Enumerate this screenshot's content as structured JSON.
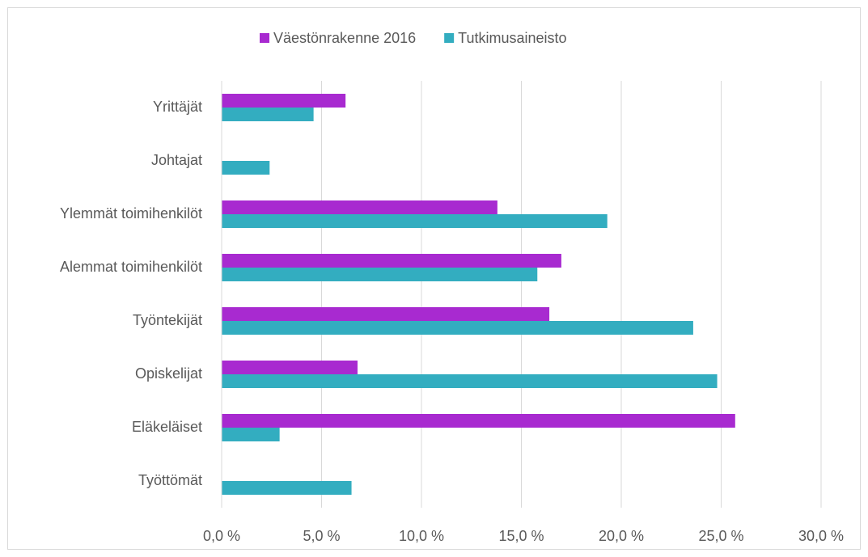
{
  "chart_data": {
    "type": "barh",
    "categories": [
      "Yrittäjät",
      "Johtajat",
      "Ylemmät toimihenkilöt",
      "Alemmat toimihenkilöt",
      "Työntekijät",
      "Opiskelijat",
      "Eläkeläiset",
      "Työttömät"
    ],
    "series": [
      {
        "name": "Väestönrakenne 2016",
        "color": "#a82ad0",
        "values": [
          6.2,
          null,
          13.8,
          17.0,
          16.4,
          6.8,
          25.7,
          null
        ]
      },
      {
        "name": "Tutkimusaineisto",
        "color": "#33adc0",
        "values": [
          4.6,
          2.4,
          19.3,
          15.8,
          23.6,
          24.8,
          2.9,
          6.5
        ]
      }
    ],
    "xlim": [
      0,
      30
    ],
    "xticks": [
      {
        "value": 0,
        "label": "0,0 %"
      },
      {
        "value": 5,
        "label": "5,0 %"
      },
      {
        "value": 10,
        "label": "10,0 %"
      },
      {
        "value": 15,
        "label": "15,0 %"
      },
      {
        "value": 20,
        "label": "20,0 %"
      },
      {
        "value": 25,
        "label": "25,0 %"
      },
      {
        "value": 30,
        "label": "30,0 %"
      }
    ],
    "grid": true,
    "legend": "top"
  }
}
